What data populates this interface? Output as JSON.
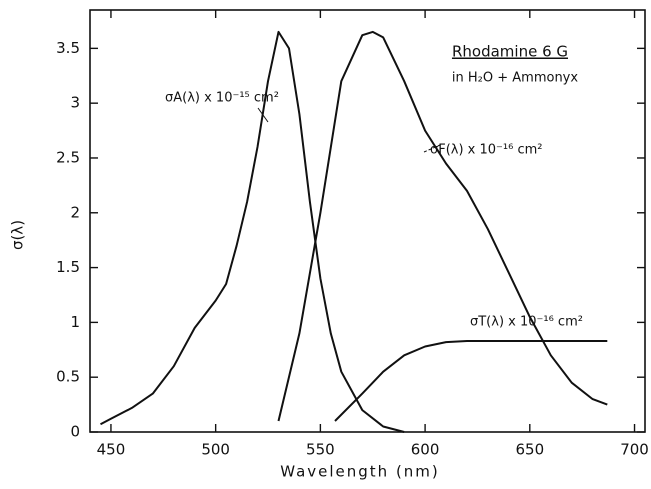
{
  "chart_data": {
    "type": "line",
    "title": "Rhodamine 6 G",
    "subtitle": "in H₂O + Ammonyx",
    "x_label": "Wavelength (nm)",
    "y_label": "σ(λ)",
    "xlim": [
      440,
      705
    ],
    "xticks": [
      450,
      500,
      550,
      600,
      650,
      700
    ],
    "ylim": [
      0,
      3.85
    ],
    "yticks": [
      0,
      0.5,
      1,
      1.5,
      2,
      2.5,
      3,
      3.5
    ],
    "series": [
      {
        "name": "σA(λ) x 10⁻¹⁵ cm²",
        "color": "#111111",
        "x": [
          445,
          450,
          460,
          470,
          480,
          490,
          500,
          505,
          510,
          515,
          520,
          525,
          530,
          535,
          540,
          545,
          550,
          555,
          560,
          570,
          580,
          590
        ],
        "values": [
          0.07,
          0.12,
          0.22,
          0.35,
          0.6,
          0.95,
          1.2,
          1.35,
          1.7,
          2.1,
          2.6,
          3.2,
          3.65,
          3.5,
          2.9,
          2.1,
          1.4,
          0.9,
          0.55,
          0.2,
          0.05,
          0.0
        ]
      },
      {
        "name": "σF(λ) x 10⁻¹⁶ cm²",
        "color": "#111111",
        "x": [
          530,
          540,
          550,
          560,
          570,
          575,
          580,
          590,
          600,
          610,
          620,
          630,
          640,
          650,
          660,
          670,
          680,
          687
        ],
        "values": [
          0.1,
          0.9,
          2.0,
          3.2,
          3.62,
          3.65,
          3.6,
          3.2,
          2.75,
          2.45,
          2.2,
          1.85,
          1.45,
          1.05,
          0.7,
          0.45,
          0.3,
          0.25
        ]
      },
      {
        "name": "σT(λ) x 10⁻¹⁶ cm²",
        "color": "#111111",
        "x": [
          557,
          570,
          580,
          590,
          600,
          610,
          620,
          687
        ],
        "values": [
          0.1,
          0.35,
          0.55,
          0.7,
          0.78,
          0.82,
          0.83,
          0.83
        ]
      }
    ]
  }
}
